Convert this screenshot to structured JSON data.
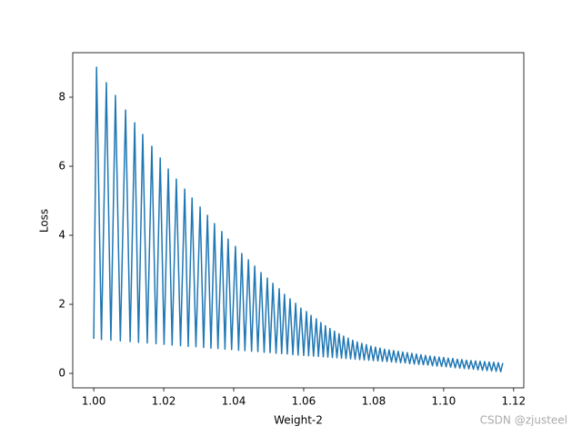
{
  "chart_data": {
    "type": "line",
    "x_label": "Weight-2",
    "y_label": "Loss",
    "watermark": "CSDN @zjusteel",
    "x": [
      1.0,
      1.0008,
      1.0022,
      1.0036,
      1.0049,
      1.0062,
      1.0076,
      1.0091,
      1.0104,
      1.0117,
      1.0128,
      1.014,
      1.0153,
      1.0166,
      1.0178,
      1.019,
      1.0201,
      1.0213,
      1.0224,
      1.0236,
      1.0248,
      1.026,
      1.027,
      1.0281,
      1.0292,
      1.0304,
      1.0314,
      1.0325,
      1.0335,
      1.0345,
      1.0355,
      1.0366,
      1.0375,
      1.0384,
      1.0394,
      1.0405,
      1.0414,
      1.0423,
      1.0432,
      1.0442,
      1.0451,
      1.046,
      1.0469,
      1.0478,
      1.0487,
      1.0496,
      1.0504,
      1.0512,
      1.0521,
      1.053,
      1.0537,
      1.0545,
      1.0553,
      1.0561,
      1.0569,
      1.0577,
      1.0584,
      1.0592,
      1.06,
      1.0608,
      1.0614,
      1.0621,
      1.0628,
      1.0636,
      1.0642,
      1.0649,
      1.0656,
      1.0662,
      1.0669,
      1.0675,
      1.0682,
      1.0688,
      1.0695,
      1.0701,
      1.0708,
      1.0714,
      1.0721,
      1.0727,
      1.0734,
      1.074,
      1.0747,
      1.0753,
      1.076,
      1.0766,
      1.0773,
      1.0779,
      1.0786,
      1.0792,
      1.0799,
      1.0805,
      1.0812,
      1.0818,
      1.0825,
      1.0831,
      1.0838,
      1.0844,
      1.0851,
      1.0857,
      1.0864,
      1.087,
      1.0877,
      1.0883,
      1.089,
      1.0896,
      1.0903,
      1.0909,
      1.0916,
      1.0922,
      1.0929,
      1.0935,
      1.0942,
      1.0948,
      1.0955,
      1.0961,
      1.0968,
      1.0974,
      1.0981,
      1.0987,
      1.0994,
      1.1,
      1.1007,
      1.1013,
      1.102,
      1.1026,
      1.1033,
      1.1039,
      1.1046,
      1.1052,
      1.1059,
      1.1065,
      1.1072,
      1.1078,
      1.1085,
      1.1091,
      1.1098,
      1.1104,
      1.1111,
      1.1117,
      1.1124,
      1.113,
      1.1137,
      1.1143,
      1.115,
      1.1156,
      1.1163,
      1.1169
    ],
    "series": [
      {
        "color": "#1f77b4",
        "values": [
          1.0,
          8.87,
          0.98,
          8.42,
          0.96,
          8.05,
          0.94,
          7.63,
          0.92,
          7.26,
          0.9,
          6.92,
          0.88,
          6.58,
          0.86,
          6.24,
          0.84,
          5.92,
          0.82,
          5.63,
          0.8,
          5.34,
          0.78,
          5.08,
          0.77,
          4.82,
          0.75,
          4.58,
          0.73,
          4.34,
          0.72,
          4.11,
          0.7,
          3.89,
          0.69,
          3.68,
          0.67,
          3.47,
          0.66,
          3.29,
          0.64,
          3.11,
          0.63,
          2.92,
          0.61,
          2.76,
          0.6,
          2.61,
          0.58,
          2.45,
          0.57,
          2.29,
          0.56,
          2.16,
          0.54,
          2.03,
          0.53,
          1.89,
          0.52,
          1.79,
          0.51,
          1.68,
          0.5,
          1.58,
          0.49,
          1.47,
          0.48,
          1.38,
          0.47,
          1.3,
          0.46,
          1.22,
          0.45,
          1.15,
          0.44,
          1.08,
          0.43,
          1.02,
          0.42,
          0.96,
          0.41,
          0.91,
          0.4,
          0.87,
          0.39,
          0.83,
          0.38,
          0.79,
          0.37,
          0.76,
          0.36,
          0.73,
          0.35,
          0.7,
          0.34,
          0.68,
          0.33,
          0.66,
          0.32,
          0.64,
          0.31,
          0.62,
          0.3,
          0.6,
          0.28,
          0.58,
          0.27,
          0.56,
          0.26,
          0.54,
          0.25,
          0.52,
          0.24,
          0.5,
          0.22,
          0.49,
          0.21,
          0.47,
          0.2,
          0.46,
          0.19,
          0.44,
          0.18,
          0.43,
          0.16,
          0.41,
          0.15,
          0.4,
          0.14,
          0.38,
          0.13,
          0.37,
          0.12,
          0.36,
          0.1,
          0.35,
          0.09,
          0.34,
          0.08,
          0.33,
          0.07,
          0.32,
          0.06,
          0.31,
          0.05,
          0.3
        ]
      }
    ],
    "xlim": [
      0.994,
      1.1229
    ],
    "ylim": [
      -0.42,
      9.29
    ],
    "xticks": [
      {
        "value": 1.0,
        "label": "1.00"
      },
      {
        "value": 1.02,
        "label": "1.02"
      },
      {
        "value": 1.04,
        "label": "1.04"
      },
      {
        "value": 1.06,
        "label": "1.06"
      },
      {
        "value": 1.08,
        "label": "1.08"
      },
      {
        "value": 1.1,
        "label": "1.10"
      },
      {
        "value": 1.12,
        "label": "1.12"
      }
    ],
    "yticks": [
      0,
      2,
      4,
      6,
      8
    ],
    "grid": false
  }
}
